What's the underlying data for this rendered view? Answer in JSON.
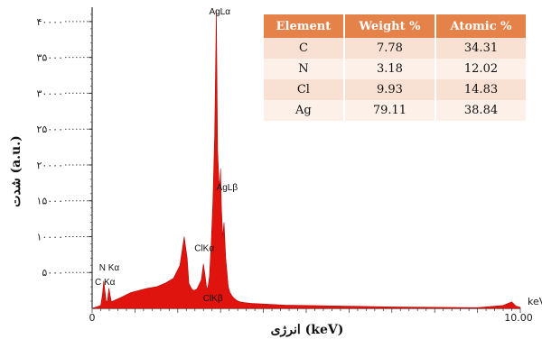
{
  "chart_data": {
    "type": "area",
    "xlabel": "انرژی (keV)",
    "ylabel": "شدت (a.u.)",
    "x_range": [
      0,
      10
    ],
    "ylim": [
      0,
      42000
    ],
    "x_tick_labels": [
      "0",
      "10.00"
    ],
    "x_unit_label": "keV",
    "y_ticks": [
      {
        "value": 40000,
        "label": "۴۰۰۰۰"
      },
      {
        "value": 35000,
        "label": "۳۵۰۰۰"
      },
      {
        "value": 30000,
        "label": "۳۰۰۰۰"
      },
      {
        "value": 25000,
        "label": "۲۵۰۰۰"
      },
      {
        "value": 20000,
        "label": "۲۰۰۰۰"
      },
      {
        "value": 15000,
        "label": "۱۵۰۰۰"
      },
      {
        "value": 10000,
        "label": "۱۰۰۰۰"
      },
      {
        "value": 5000,
        "label": "۵۰۰۰"
      }
    ],
    "series_color": "#e0140e",
    "spectrum": {
      "x": [
        0.0,
        0.1,
        0.2,
        0.24,
        0.27,
        0.3,
        0.33,
        0.36,
        0.39,
        0.45,
        0.55,
        0.7,
        0.9,
        1.1,
        1.3,
        1.5,
        1.7,
        1.9,
        2.05,
        2.15,
        2.22,
        2.26,
        2.3,
        2.34,
        2.38,
        2.45,
        2.55,
        2.6,
        2.64,
        2.67,
        2.7,
        2.74,
        2.78,
        2.82,
        2.86,
        2.9,
        2.93,
        2.96,
        2.98,
        3.0,
        3.02,
        3.05,
        3.08,
        3.12,
        3.15,
        3.18,
        3.22,
        3.26,
        3.3,
        3.34,
        3.38,
        3.45,
        3.55,
        3.7,
        4.0,
        4.5,
        5.0,
        6.0,
        7.0,
        8.0,
        9.0,
        9.6,
        9.8,
        9.9,
        10.0
      ],
      "y": [
        0,
        200,
        400,
        1900,
        3800,
        2400,
        900,
        1100,
        2800,
        900,
        1200,
        1600,
        2200,
        2500,
        2800,
        3000,
        3500,
        4200,
        6000,
        10000,
        7000,
        3500,
        3000,
        2600,
        2500,
        2700,
        4000,
        6200,
        4500,
        3000,
        2700,
        4500,
        9000,
        15000,
        24000,
        41500,
        22000,
        18000,
        17000,
        19500,
        14000,
        10000,
        12000,
        7000,
        5000,
        3000,
        2200,
        1800,
        1500,
        1300,
        1100,
        900,
        800,
        700,
        600,
        450,
        400,
        300,
        200,
        150,
        100,
        400,
        900,
        300,
        150
      ]
    },
    "peak_labels": [
      {
        "text": "AgLα",
        "x": 2.98,
        "y": 41000
      },
      {
        "text": "AgLβ",
        "x": 3.15,
        "y": 16500
      },
      {
        "text": "ClKα",
        "x": 2.62,
        "y": 8000
      },
      {
        "text": "ClKβ",
        "x": 2.82,
        "y": 1000
      },
      {
        "text": "N Kα",
        "x": 0.4,
        "y": 5300
      },
      {
        "text": "C Kα",
        "x": 0.3,
        "y": 3300
      }
    ]
  },
  "table": {
    "headers": [
      "Element",
      "Weight %",
      "Atomic %"
    ],
    "rows": [
      [
        "C",
        "7.78",
        "34.31"
      ],
      [
        "N",
        "3.18",
        "12.02"
      ],
      [
        "Cl",
        "9.93",
        "14.83"
      ],
      [
        "Ag",
        "79.11",
        "38.84"
      ]
    ]
  }
}
